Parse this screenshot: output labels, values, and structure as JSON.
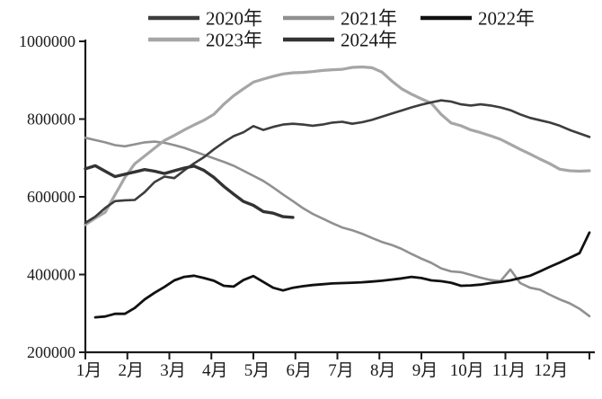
{
  "meta": {
    "background": "#ffffff",
    "axis_color": "#1a1a1a",
    "text_color": "#1a1a1a"
  },
  "chart_data": {
    "type": "line",
    "title": "",
    "grid": false,
    "legend_position": "top",
    "x_axis": {
      "unit": "month",
      "tick_labels": [
        "1月",
        "2月",
        "3月",
        "4月",
        "5月",
        "6月",
        "7月",
        "8月",
        "9月",
        "10月",
        "11月",
        "12月"
      ],
      "points_per_full_series": 52
    },
    "y_axis": {
      "min": 200000,
      "max": 1000000,
      "tick_interval": 200000,
      "tick_labels": [
        "200000",
        "400000",
        "600000",
        "800000",
        "1000000"
      ]
    },
    "series": [
      {
        "name": "2021年",
        "color": "#909090",
        "width": 2.6,
        "values": [
          752000,
          746000,
          740000,
          733000,
          730000,
          735000,
          740000,
          742000,
          739000,
          733000,
          726000,
          717000,
          708000,
          699000,
          690000,
          680000,
          667000,
          654000,
          641000,
          624000,
          606000,
          589000,
          571000,
          556000,
          544000,
          532000,
          521000,
          514000,
          505000,
          494000,
          484000,
          476000,
          466000,
          453000,
          441000,
          430000,
          416000,
          408000,
          406000,
          399000,
          392000,
          386000,
          383000,
          413000,
          378000,
          366000,
          361000,
          348000,
          336000,
          326000,
          312000,
          293000
        ]
      },
      {
        "name": "2023年",
        "color": "#a6a6a6",
        "width": 3.2,
        "values": [
          528000,
          545000,
          560000,
          605000,
          650000,
          685000,
          705000,
          725000,
          745000,
          758000,
          772000,
          785000,
          797000,
          812000,
          838000,
          860000,
          878000,
          895000,
          903000,
          910000,
          916000,
          919000,
          920000,
          922000,
          925000,
          927000,
          928000,
          933000,
          934000,
          932000,
          921000,
          898000,
          878000,
          864000,
          852000,
          841000,
          812000,
          790000,
          783000,
          772000,
          765000,
          757000,
          748000,
          735000,
          722000,
          710000,
          697000,
          685000,
          671000,
          667000,
          666000,
          667000
        ]
      },
      {
        "name": "2020年",
        "color": "#3d3d3d",
        "width": 2.6,
        "values": [
          533000,
          549000,
          571000,
          589000,
          591000,
          592000,
          612000,
          638000,
          652000,
          648000,
          668000,
          686000,
          702000,
          722000,
          740000,
          756000,
          766000,
          782000,
          772000,
          780000,
          786000,
          788000,
          786000,
          783000,
          786000,
          791000,
          793000,
          788000,
          792000,
          798000,
          806000,
          814000,
          822000,
          830000,
          837000,
          843000,
          848000,
          845000,
          838000,
          835000,
          838000,
          835000,
          830000,
          823000,
          812000,
          803000,
          797000,
          791000,
          783000,
          772000,
          763000,
          754000
        ]
      },
      {
        "name": "2024年",
        "color": "#333333",
        "width": 3.4,
        "values": [
          672000,
          680000,
          666000,
          652000,
          658000,
          664000,
          670000,
          666000,
          660000,
          667000,
          674000,
          679000,
          668000,
          650000,
          627000,
          607000,
          588000,
          578000,
          562000,
          558000,
          549000,
          547000
        ]
      },
      {
        "name": "2022年",
        "color": "#111111",
        "width": 2.8,
        "values": [
          null,
          290000,
          292000,
          299000,
          299000,
          314000,
          336000,
          353000,
          368000,
          385000,
          394000,
          397000,
          391000,
          384000,
          371000,
          369000,
          386000,
          396000,
          381000,
          366000,
          359000,
          366000,
          370000,
          373000,
          375000,
          377000,
          378000,
          379000,
          380000,
          382000,
          384000,
          387000,
          390000,
          394000,
          391000,
          385000,
          383000,
          379000,
          371000,
          372000,
          374000,
          378000,
          381000,
          385000,
          391000,
          397000,
          408000,
          420000,
          431000,
          443000,
          455000,
          508000
        ]
      }
    ],
    "legend_order": [
      "2020年",
      "2021年",
      "2022年",
      "2023年",
      "2024年"
    ]
  }
}
